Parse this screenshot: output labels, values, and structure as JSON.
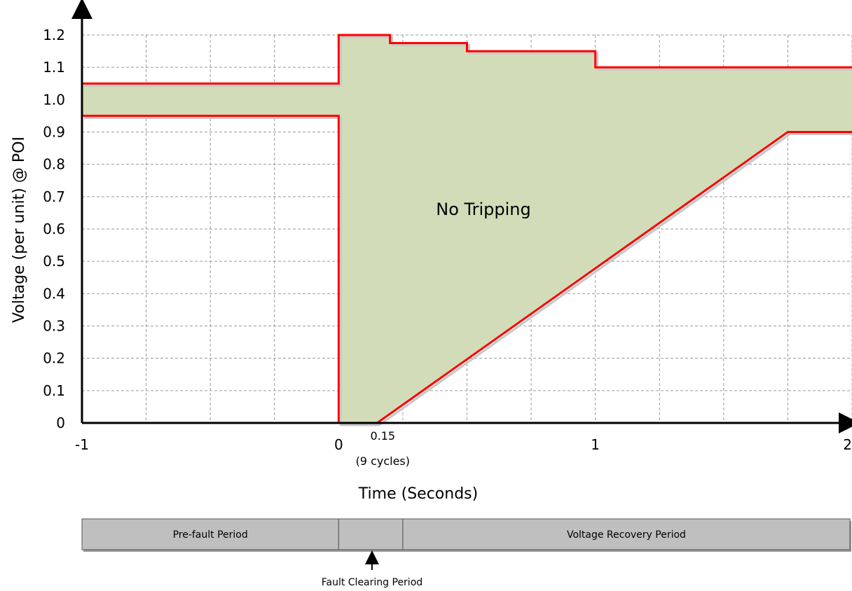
{
  "chart_data": {
    "type": "line",
    "title": "",
    "xlabel": "Time (Seconds)",
    "ylabel": "Voltage (per unit) @ POI",
    "xlim": [
      -1,
      2
    ],
    "ylim": [
      0,
      1.2
    ],
    "grid": true,
    "x_ticks": [
      {
        "value": -1,
        "label": "-1"
      },
      {
        "value": 0,
        "label": "0"
      },
      {
        "value": 1,
        "label": "1"
      },
      {
        "value": 2,
        "label": "2"
      }
    ],
    "x_tick_special": {
      "value": 0.15,
      "label": "0.15",
      "sublabel": "(9 cycles)"
    },
    "y_ticks": [
      {
        "value": 0,
        "label": "0"
      },
      {
        "value": 0.1,
        "label": "0.1"
      },
      {
        "value": 0.2,
        "label": "0.2"
      },
      {
        "value": 0.3,
        "label": "0.3"
      },
      {
        "value": 0.4,
        "label": "0.4"
      },
      {
        "value": 0.5,
        "label": "0.5"
      },
      {
        "value": 0.6,
        "label": "0.6"
      },
      {
        "value": 0.7,
        "label": "0.7"
      },
      {
        "value": 0.8,
        "label": "0.8"
      },
      {
        "value": 0.9,
        "label": "0.9"
      },
      {
        "value": 1.0,
        "label": "1.0"
      },
      {
        "value": 1.1,
        "label": "1.1"
      },
      {
        "value": 1.2,
        "label": "1.2"
      }
    ],
    "series": [
      {
        "points": [
          [
            -1,
            1.05
          ],
          [
            0,
            1.05
          ],
          [
            0,
            1.2
          ],
          [
            0.2,
            1.2
          ],
          [
            0.2,
            1.175
          ],
          [
            0.5,
            1.175
          ],
          [
            0.5,
            1.15
          ],
          [
            1.0,
            1.15
          ],
          [
            1.0,
            1.1
          ],
          [
            2.0,
            1.1
          ]
        ]
      },
      {
        "points": [
          [
            -1,
            0.95
          ],
          [
            0,
            0.95
          ],
          [
            0,
            0
          ],
          [
            0.15,
            0
          ],
          [
            1.75,
            0.9
          ],
          [
            2.0,
            0.9
          ]
        ]
      }
    ],
    "region_label": "No Tripping",
    "colors": {
      "boundary": "#ff0000",
      "region_fill": "#d3dcb8",
      "grid": "#999999"
    }
  },
  "periods": {
    "bars": [
      {
        "label": "Pre-fault Period",
        "x_start": -1,
        "x_end": 0
      },
      {
        "label": "",
        "x_start": 0,
        "x_end": 0.25
      },
      {
        "label": "Voltage Recovery Period",
        "x_start": 0.25,
        "x_end": 2
      }
    ],
    "annotation": {
      "label": "Fault Clearing Period",
      "x": 0.13
    },
    "color": "#bfbfbf"
  }
}
